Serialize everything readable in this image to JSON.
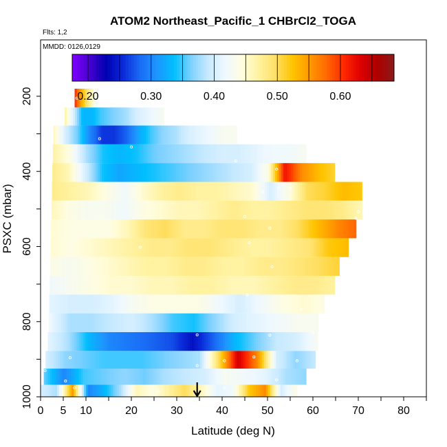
{
  "chart_data": {
    "type": "heatmap",
    "title": "ATOM2 Northeast_Pacific_1 CHBrCl2_TOGA",
    "flights_label": "Flts: 1,2",
    "dates_label": "MMDD: 0126,0129",
    "xlabel": "Latitude (deg N)",
    "ylabel": "PSXC (mbar)",
    "xlim": [
      0,
      85
    ],
    "ylim": [
      1000,
      50
    ],
    "x_tick_labels": [
      "0",
      "5",
      "10",
      "20",
      "30",
      "40",
      "50",
      "60",
      "70",
      "80"
    ],
    "x_tick_values": [
      0,
      5,
      10,
      20,
      30,
      40,
      50,
      60,
      70,
      80
    ],
    "x_minor_ticks": [
      15,
      25,
      35,
      45,
      55,
      65,
      75,
      85
    ],
    "y_tick_labels": [
      "200",
      "400",
      "600",
      "800",
      "1000"
    ],
    "y_tick_values": [
      200,
      400,
      600,
      800,
      1000
    ],
    "colorbar": {
      "range": [
        0.175,
        0.685
      ],
      "tick_labels": [
        "0.20",
        "0.30",
        "0.40",
        "0.50",
        "0.60"
      ],
      "tick_values": [
        0.2,
        0.3,
        0.4,
        0.5,
        0.6
      ],
      "colors": [
        "#7f00ff",
        "#4a00d0",
        "#0000b0",
        "#0a2ad8",
        "#1a6bf5",
        "#1e95ff",
        "#00bfff",
        "#7cd0ff",
        "#c6e9ff",
        "#eef8ff",
        "#fffde0",
        "#fff2a0",
        "#ffe066",
        "#ffc400",
        "#ff9a00",
        "#ff6a00",
        "#ff2a00",
        "#e00000",
        "#b00000",
        "#8a1a1a"
      ]
    },
    "rows": [
      {
        "p_top": 180,
        "p_bot": 230,
        "x0": 7.5,
        "x1": 12.5,
        "values": [
          0.61,
          0.55,
          0.5,
          0.46,
          0.42
        ]
      },
      {
        "p_top": 230,
        "p_bot": 278,
        "x0": 5.3,
        "x1": 27.2,
        "values": [
          0.47,
          0.4,
          0.33,
          0.33,
          0.35,
          0.36,
          0.37,
          0.38,
          0.4,
          0.41,
          0.42,
          0.43
        ]
      },
      {
        "p_top": 278,
        "p_bot": 328,
        "x0": 2.8,
        "x1": 43.2,
        "values": [
          0.46,
          0.4,
          0.36,
          0.3,
          0.26,
          0.26,
          0.28,
          0.32,
          0.35,
          0.37,
          0.38,
          0.4,
          0.41,
          0.42,
          0.43,
          0.43
        ]
      },
      {
        "p_top": 328,
        "p_bot": 378,
        "x0": 2.7,
        "x1": 58.5,
        "values": [
          0.47,
          0.44,
          0.38,
          0.34,
          0.33,
          0.34,
          0.36,
          0.37,
          0.38,
          0.39,
          0.4,
          0.4,
          0.41,
          0.42,
          0.42,
          0.43
        ]
      },
      {
        "p_top": 378,
        "p_bot": 428,
        "x0": 2.6,
        "x1": 64.8,
        "values": [
          0.48,
          0.46,
          0.4,
          0.34,
          0.32,
          0.33,
          0.34,
          0.35,
          0.36,
          0.37,
          0.38,
          0.39,
          0.4,
          0.44,
          0.62,
          0.56,
          0.53,
          0.51
        ]
      },
      {
        "p_top": 428,
        "p_bot": 478,
        "x0": 2.5,
        "x1": 70.8,
        "values": [
          0.48,
          0.47,
          0.46,
          0.44,
          0.42,
          0.45,
          0.47,
          0.48,
          0.47,
          0.47,
          0.46,
          0.45,
          0.4,
          0.44,
          0.5,
          0.51,
          0.53,
          0.52
        ]
      },
      {
        "p_top": 478,
        "p_bot": 528,
        "x0": 2.4,
        "x1": 70.8,
        "values": [
          0.46,
          0.44,
          0.43,
          0.43,
          0.42,
          0.44,
          0.45,
          0.46,
          0.46,
          0.47,
          0.48,
          0.47,
          0.47,
          0.48,
          0.49,
          0.49,
          0.48,
          0.46
        ]
      },
      {
        "p_top": 528,
        "p_bot": 578,
        "x0": 2.3,
        "x1": 69.5,
        "values": [
          0.45,
          0.44,
          0.44,
          0.44,
          0.46,
          0.49,
          0.5,
          0.48,
          0.48,
          0.49,
          0.49,
          0.48,
          0.48,
          0.5,
          0.53,
          0.56,
          0.58
        ]
      },
      {
        "p_top": 578,
        "p_bot": 628,
        "x0": 2.2,
        "x1": 67.8,
        "values": [
          0.45,
          0.44,
          0.45,
          0.46,
          0.47,
          0.48,
          0.48,
          0.49,
          0.49,
          0.48,
          0.47,
          0.47,
          0.48,
          0.49,
          0.52,
          0.53
        ]
      },
      {
        "p_top": 628,
        "p_bot": 678,
        "x0": 2.1,
        "x1": 65.8,
        "values": [
          0.44,
          0.43,
          0.44,
          0.45,
          0.46,
          0.47,
          0.47,
          0.48,
          0.48,
          0.47,
          0.47,
          0.48,
          0.48,
          0.49,
          0.5,
          0.51
        ]
      },
      {
        "p_top": 678,
        "p_bot": 728,
        "x0": 2.0,
        "x1": 64.8,
        "values": [
          0.42,
          0.43,
          0.44,
          0.45,
          0.45,
          0.46,
          0.46,
          0.47,
          0.47,
          0.46,
          0.46,
          0.47,
          0.48,
          0.48,
          0.47
        ]
      },
      {
        "p_top": 728,
        "p_bot": 778,
        "x0": 1.9,
        "x1": 62.5,
        "values": [
          0.41,
          0.4,
          0.4,
          0.41,
          0.43,
          0.44,
          0.44,
          0.44,
          0.42,
          0.4,
          0.42,
          0.44,
          0.45,
          0.44
        ]
      },
      {
        "p_top": 778,
        "p_bot": 828,
        "x0": 1.8,
        "x1": 61.2,
        "values": [
          0.42,
          0.38,
          0.38,
          0.39,
          0.4,
          0.38,
          0.35,
          0.34,
          0.37,
          0.4,
          0.41,
          0.42,
          0.43,
          0.43
        ]
      },
      {
        "p_top": 828,
        "p_bot": 878,
        "x0": 1.6,
        "x1": 61.0,
        "values": [
          0.41,
          0.38,
          0.33,
          0.3,
          0.29,
          0.28,
          0.27,
          0.24,
          0.28,
          0.33,
          0.36,
          0.39,
          0.4,
          0.43
        ]
      },
      {
        "p_top": 878,
        "p_bot": 925,
        "x0": 1.1,
        "x1": 60.5,
        "values": [
          0.4,
          0.37,
          0.36,
          0.35,
          0.35,
          0.35,
          0.36,
          0.37,
          0.38,
          0.5,
          0.64,
          0.56,
          0.4,
          0.37,
          0.39
        ]
      },
      {
        "p_top": 925,
        "p_bot": 968,
        "x0": 0.7,
        "x1": 58.5,
        "values": [
          0.36,
          0.3,
          0.35,
          0.36,
          0.37,
          0.36,
          0.38,
          0.39,
          0.4,
          0.43,
          0.42,
          0.41,
          0.38,
          0.37
        ]
      },
      {
        "p_top": 968,
        "p_bot": 1012,
        "x0": 0.0,
        "x1": 56.5,
        "values": [
          0.4,
          0.38,
          0.55,
          0.3,
          0.33,
          0.38,
          0.46,
          0.44,
          0.47,
          0.5,
          0.46,
          0.41,
          0.42,
          0.52,
          0.56,
          0.4,
          0.44
        ]
      }
    ],
    "markers": [
      [
        8.0,
        205
      ],
      [
        13.0,
        313
      ],
      [
        20.0,
        335
      ],
      [
        43.0,
        372
      ],
      [
        52.0,
        394
      ],
      [
        52.5,
        444
      ],
      [
        49.0,
        454
      ],
      [
        55.0,
        446
      ],
      [
        45.0,
        520
      ],
      [
        69.5,
        525
      ],
      [
        70.0,
        508
      ],
      [
        22.0,
        602
      ],
      [
        69.0,
        592
      ],
      [
        50.5,
        551
      ],
      [
        46.0,
        590
      ],
      [
        51.0,
        654
      ],
      [
        45.5,
        729
      ],
      [
        57.5,
        767
      ],
      [
        34.5,
        835
      ],
      [
        50.5,
        836
      ],
      [
        60.0,
        829
      ],
      [
        34.5,
        917
      ],
      [
        40.5,
        904
      ],
      [
        47.0,
        894
      ],
      [
        56.5,
        904
      ],
      [
        6.5,
        896
      ],
      [
        1.0,
        930
      ],
      [
        5.5,
        958
      ],
      [
        7.5,
        976
      ],
      [
        26.0,
        986
      ],
      [
        40.5,
        976
      ],
      [
        52.0,
        955
      ]
    ],
    "arrow_x": 34.5
  }
}
